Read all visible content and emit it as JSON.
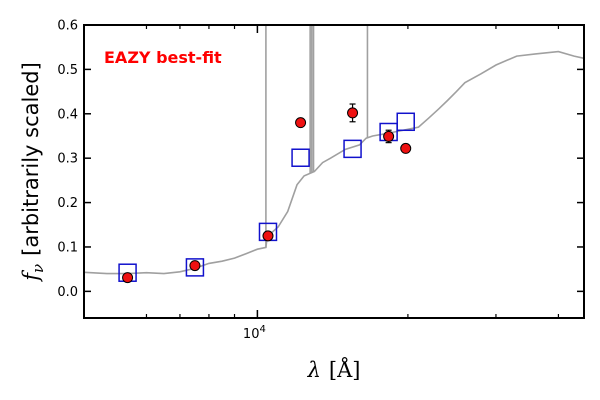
{
  "chart_data": {
    "type": "scatter",
    "title": "",
    "annotation": "EAZY best-fit",
    "annotation_color": "#ff0000",
    "xlabel_symbol": "λ",
    "xlabel_unit": "[Å]",
    "ylabel_symbol": "f",
    "ylabel_subscript": "ν",
    "ylabel_text": "[arbitrarily scaled]",
    "x_scale": "log",
    "xlim": [
      4500,
      45000
    ],
    "ylim": [
      -0.06,
      0.6
    ],
    "yticks": [
      0.0,
      0.1,
      0.2,
      0.3,
      0.4,
      0.5,
      0.6
    ],
    "ytick_labels": [
      "0.0",
      "0.1",
      "0.2",
      "0.3",
      "0.4",
      "0.5",
      "0.6"
    ],
    "xtick_major": [
      {
        "value": 10000,
        "base": "10",
        "exp": "4"
      }
    ],
    "xtick_minor": [
      6000,
      7000,
      8000,
      9000,
      20000,
      30000,
      40000
    ],
    "grid": false,
    "series": [
      {
        "kind": "observed-photometry",
        "color": "#ee1111",
        "x": [
          5500,
          7500,
          10500,
          12200,
          15500,
          18300,
          19800
        ],
        "y": [
          0.031,
          0.058,
          0.125,
          0.38,
          0.402,
          0.349,
          0.322
        ],
        "yerr": [
          0.003,
          0.003,
          0.003,
          0.006,
          0.02,
          0.014,
          0.008
        ]
      },
      {
        "kind": "model-photometry",
        "color": "#1111cc",
        "x": [
          5500,
          7500,
          10500,
          12200,
          15500,
          18300,
          19800
        ],
        "y": [
          0.042,
          0.054,
          0.134,
          0.301,
          0.321,
          0.359,
          0.382
        ]
      },
      {
        "kind": "best-fit-sed",
        "color": "#a0a0a0",
        "x": [
          4500,
          5000,
          5500,
          6000,
          6500,
          7000,
          7500,
          8000,
          8500,
          9000,
          9500,
          10000,
          10400,
          10450,
          10500,
          11000,
          11500,
          12000,
          12400,
          13000,
          13500,
          14000,
          15000,
          16000,
          16500,
          17000,
          18000,
          19000,
          20000,
          21000,
          22000,
          23000,
          24000,
          25000,
          26000,
          28000,
          30000,
          33000,
          36000,
          40000,
          43000,
          45000
        ],
        "y": [
          0.043,
          0.04,
          0.04,
          0.042,
          0.04,
          0.044,
          0.052,
          0.063,
          0.068,
          0.075,
          0.085,
          0.095,
          0.099,
          0.12,
          0.125,
          0.145,
          0.18,
          0.24,
          0.26,
          0.27,
          0.29,
          0.3,
          0.32,
          0.33,
          0.345,
          0.35,
          0.355,
          0.36,
          0.365,
          0.37,
          0.39,
          0.41,
          0.43,
          0.45,
          0.47,
          0.49,
          0.51,
          0.53,
          0.535,
          0.54,
          0.53,
          0.525
        ],
        "emission_lines": [
          {
            "x": 10400,
            "peak": 0.6
          },
          {
            "x": 12750,
            "peak": 0.6
          },
          {
            "x": 12850,
            "peak": 0.6
          },
          {
            "x": 12950,
            "peak": 0.6
          },
          {
            "x": 16600,
            "peak": 0.6
          }
        ]
      }
    ]
  }
}
